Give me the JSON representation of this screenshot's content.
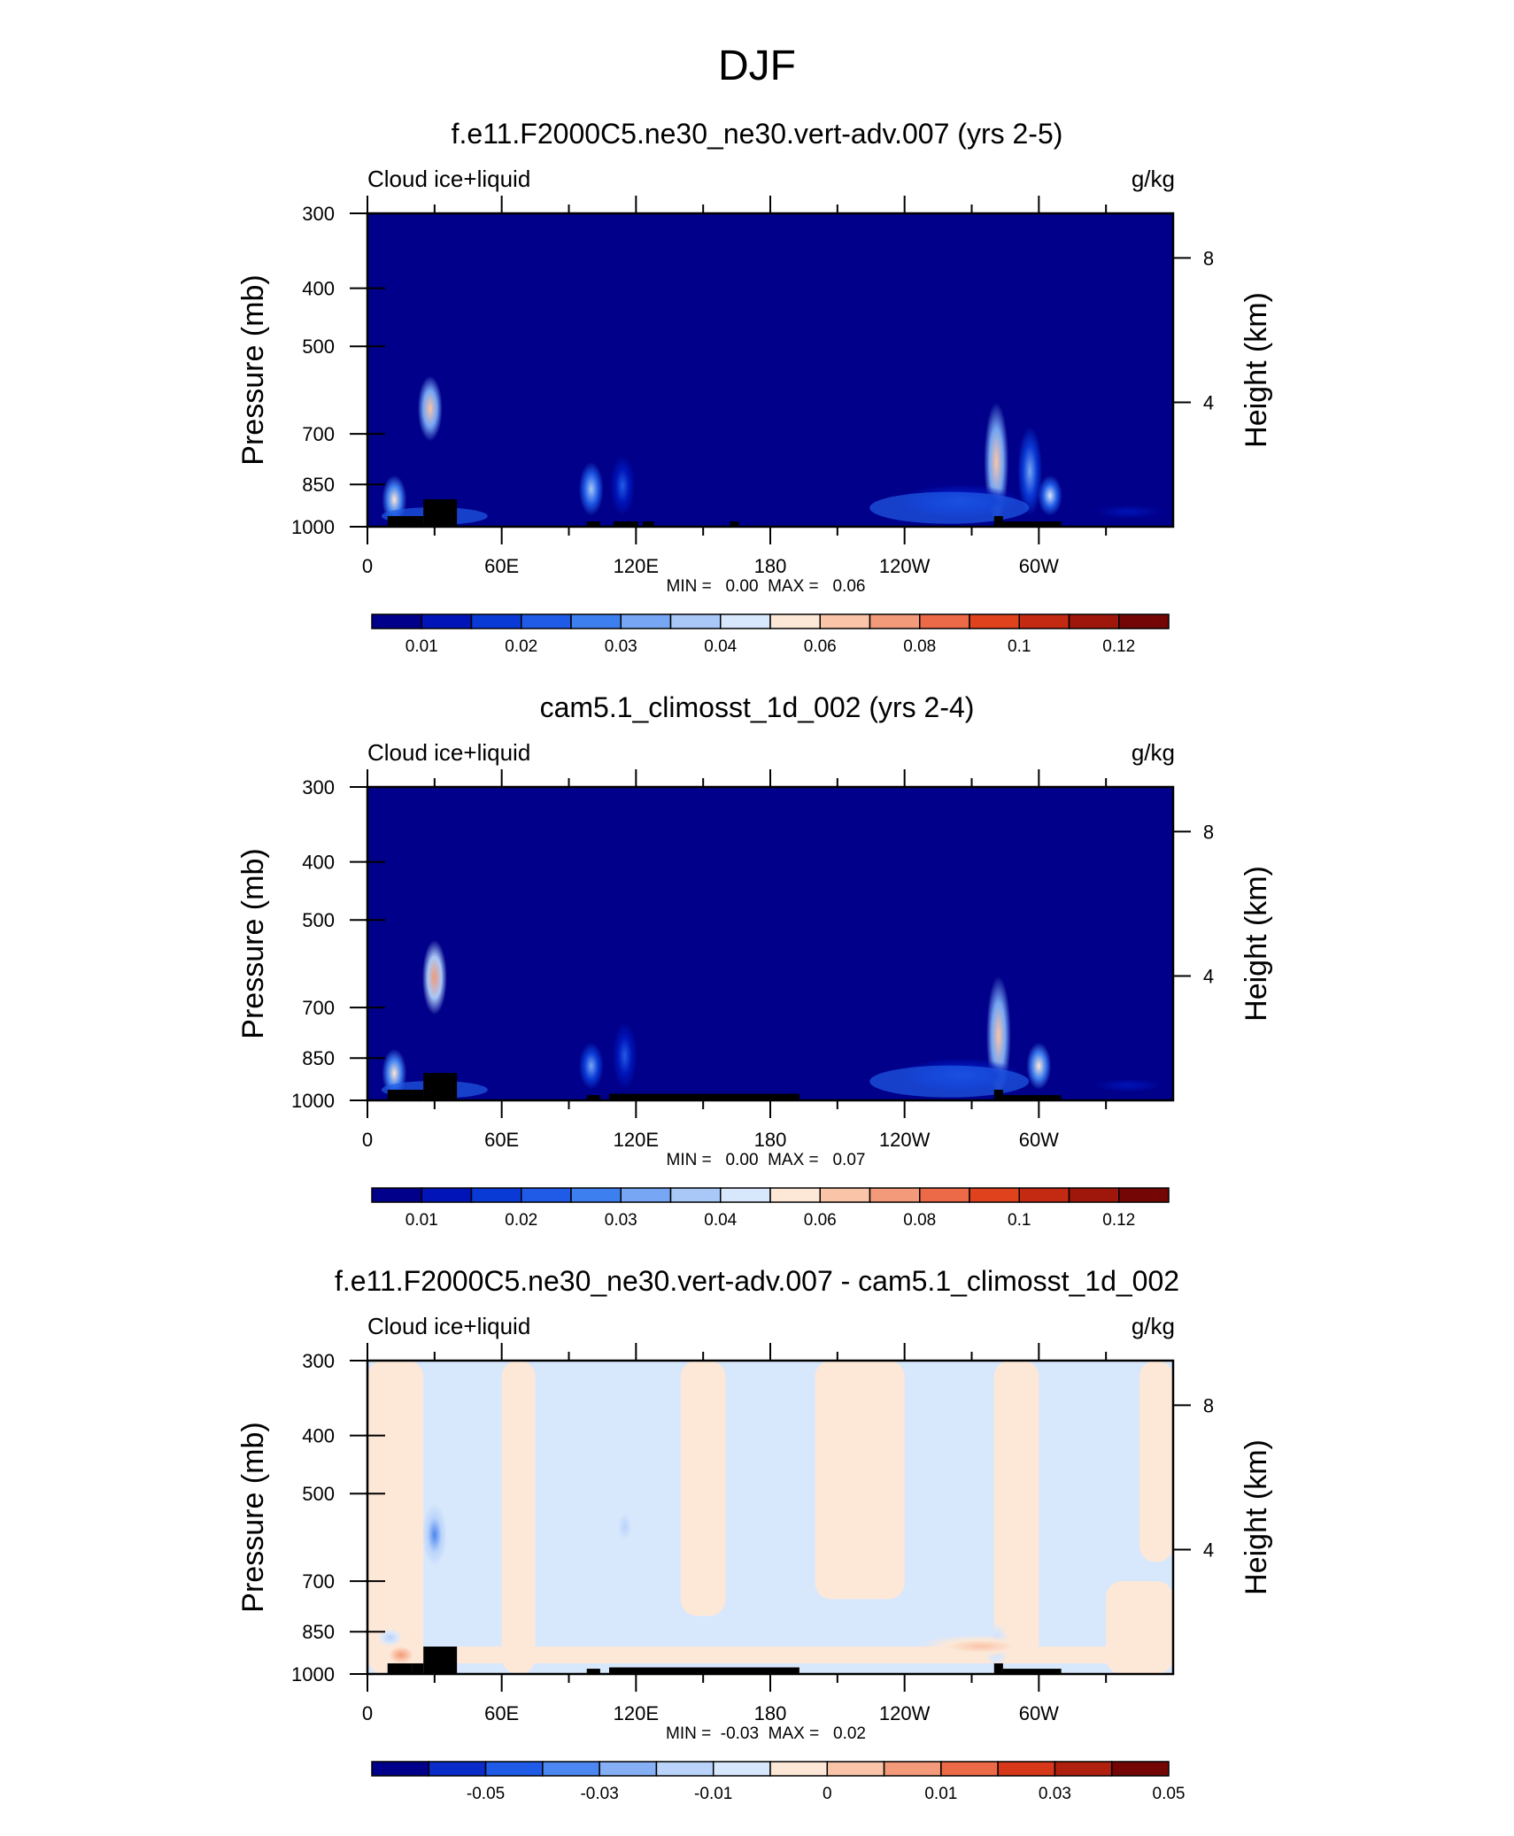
{
  "page": {
    "title": "DJF"
  },
  "chart_data": [
    {
      "type": "heatmap",
      "title": "f.e11.F2000C5.ne30_ne30.vert-adv.007 (yrs 2-5)",
      "variable": "Cloud ice+liquid",
      "units": "g/kg",
      "ylabel": "Pressure (mb)",
      "y2label": "Height (km)",
      "x_ticks": [
        "0",
        "60E",
        "120E",
        "180",
        "120W",
        "60W"
      ],
      "y_ticks": [
        "300",
        "400",
        "500",
        "700",
        "850",
        "1000"
      ],
      "y2_ticks": [
        "8",
        "4"
      ],
      "xlim": [
        0,
        360
      ],
      "ylim": [
        1000,
        300
      ],
      "stats_label": "MIN =   0.00  MAX =   0.06",
      "min": 0.0,
      "max": 0.06,
      "colorbar": {
        "labels": [
          "0.01",
          "0.02",
          "0.03",
          "0.04",
          "0.06",
          "0.08",
          "0.1",
          "0.12"
        ],
        "colors": [
          "#00008a",
          "#0014b8",
          "#0a3ad6",
          "#1f5be6",
          "#3e7ff0",
          "#76a6f4",
          "#a9c8f8",
          "#d7e7fc",
          "#fde8d8",
          "#f9c4a8",
          "#f39a7a",
          "#ec6a48",
          "#e1421e",
          "#c42a12",
          "#9e170a",
          "#740606"
        ]
      },
      "features": [
        {
          "lon": 12,
          "p_top": 820,
          "p_bot": 990,
          "value": 0.045
        },
        {
          "lon": 28,
          "p_top": 560,
          "p_bot": 720,
          "value": 0.06
        },
        {
          "lon": 100,
          "p_top": 780,
          "p_bot": 960,
          "value": 0.035
        },
        {
          "lon": 114,
          "p_top": 760,
          "p_bot": 960,
          "value": 0.02
        },
        {
          "lon": 281,
          "p_top": 620,
          "p_bot": 980,
          "value": 0.055
        },
        {
          "lon": 296,
          "p_top": 680,
          "p_bot": 960,
          "value": 0.03
        },
        {
          "lon": 305,
          "p_top": 820,
          "p_bot": 960,
          "value": 0.04
        },
        {
          "lon": 265,
          "p_top": 850,
          "p_bot": 970,
          "value": 0.012
        },
        {
          "lon": 340,
          "p_top": 900,
          "p_bot": 990,
          "value": 0.01
        }
      ]
    },
    {
      "type": "heatmap",
      "title": "cam5.1_climosst_1d_002 (yrs 2-4)",
      "variable": "Cloud ice+liquid",
      "units": "g/kg",
      "ylabel": "Pressure (mb)",
      "y2label": "Height (km)",
      "x_ticks": [
        "0",
        "60E",
        "120E",
        "180",
        "120W",
        "60W"
      ],
      "y_ticks": [
        "300",
        "400",
        "500",
        "700",
        "850",
        "1000"
      ],
      "y2_ticks": [
        "8",
        "4"
      ],
      "xlim": [
        0,
        360
      ],
      "ylim": [
        1000,
        300
      ],
      "stats_label": "MIN =   0.00  MAX =   0.07",
      "min": 0.0,
      "max": 0.07,
      "colorbar": {
        "labels": [
          "0.01",
          "0.02",
          "0.03",
          "0.04",
          "0.06",
          "0.08",
          "0.1",
          "0.12"
        ],
        "colors": [
          "#00008a",
          "#0014b8",
          "#0a3ad6",
          "#1f5be6",
          "#3e7ff0",
          "#76a6f4",
          "#a9c8f8",
          "#d7e7fc",
          "#fde8d8",
          "#f9c4a8",
          "#f39a7a",
          "#ec6a48",
          "#e1421e",
          "#c42a12",
          "#9e170a",
          "#740606"
        ]
      },
      "features": [
        {
          "lon": 12,
          "p_top": 820,
          "p_bot": 990,
          "value": 0.045
        },
        {
          "lon": 30,
          "p_top": 540,
          "p_bot": 720,
          "value": 0.07
        },
        {
          "lon": 100,
          "p_top": 800,
          "p_bot": 960,
          "value": 0.03
        },
        {
          "lon": 115,
          "p_top": 740,
          "p_bot": 960,
          "value": 0.02
        },
        {
          "lon": 282,
          "p_top": 620,
          "p_bot": 980,
          "value": 0.055
        },
        {
          "lon": 300,
          "p_top": 800,
          "p_bot": 960,
          "value": 0.045
        },
        {
          "lon": 265,
          "p_top": 850,
          "p_bot": 970,
          "value": 0.012
        },
        {
          "lon": 340,
          "p_top": 900,
          "p_bot": 990,
          "value": 0.01
        }
      ]
    },
    {
      "type": "heatmap",
      "title": "f.e11.F2000C5.ne30_ne30.vert-adv.007 - cam5.1_climosst_1d_002",
      "variable": "Cloud ice+liquid",
      "units": "g/kg",
      "ylabel": "Pressure (mb)",
      "y2label": "Height (km)",
      "x_ticks": [
        "0",
        "60E",
        "120E",
        "180",
        "120W",
        "60W"
      ],
      "y_ticks": [
        "300",
        "400",
        "500",
        "700",
        "850",
        "1000"
      ],
      "y2_ticks": [
        "8",
        "4"
      ],
      "xlim": [
        0,
        360
      ],
      "ylim": [
        1000,
        300
      ],
      "stats_label": "MIN =  -0.03  MAX =   0.02",
      "min": -0.03,
      "max": 0.02,
      "colorbar": {
        "labels": [
          "-0.05",
          "-0.03",
          "-0.01",
          "0",
          "0.01",
          "0.03",
          "0.05"
        ],
        "colors": [
          "#00008a",
          "#0a2cc8",
          "#1f5be6",
          "#4c86f0",
          "#86afF5",
          "#b9d3fa",
          "#d7e7fc",
          "#fde8d8",
          "#f9c4a8",
          "#f39a7a",
          "#ec6a48",
          "#d8381a",
          "#b0200e",
          "#740606"
        ]
      },
      "features": [
        {
          "lon": 30,
          "p_top": 520,
          "p_bot": 660,
          "value": -0.03
        },
        {
          "lon": 10,
          "p_top": 840,
          "p_bot": 900,
          "value": -0.01
        },
        {
          "lon": 15,
          "p_top": 900,
          "p_bot": 960,
          "value": 0.02
        },
        {
          "lon": 281,
          "p_top": 820,
          "p_bot": 980,
          "value": -0.01
        },
        {
          "lon": 274,
          "p_top": 860,
          "p_bot": 940,
          "value": 0.015
        },
        {
          "lon": 115,
          "p_top": 520,
          "p_bot": 620,
          "value": -0.01
        }
      ]
    }
  ],
  "land_mask_blocks": [
    {
      "lon0": 9,
      "lon1": 20,
      "p_top": 960
    },
    {
      "lon0": 20,
      "lon1": 25,
      "p_top": 960
    },
    {
      "lon0": 25,
      "lon1": 40,
      "p_top": 900
    },
    {
      "lon0": 98,
      "lon1": 104,
      "p_top": 980
    },
    {
      "lon0": 280,
      "lon1": 284,
      "p_top": 960
    },
    {
      "lon0": 284,
      "lon1": 310,
      "p_top": 980
    }
  ]
}
